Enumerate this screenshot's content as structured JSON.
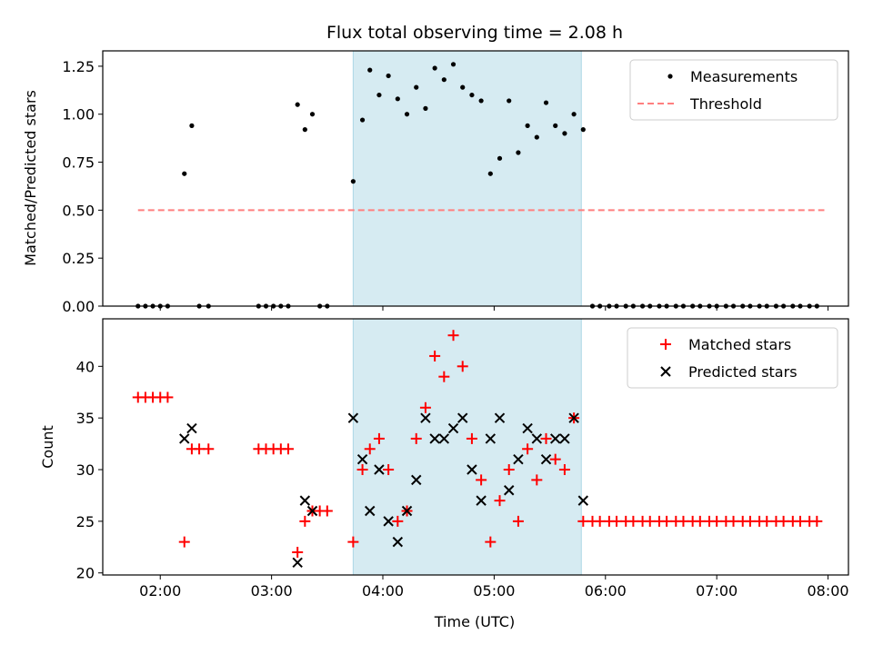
{
  "title": "Flux total observing time = 2.08 h",
  "colors": {
    "shade": "#add8e6",
    "measurements": "#000000",
    "threshold": "#ff7f7f",
    "matched": "#ff0000",
    "predicted": "#000000"
  },
  "chart_data": [
    {
      "type": "scatter",
      "ylabel": "Matched/Predicted stars",
      "xlim": [
        "01:29",
        "08:11"
      ],
      "ylim": [
        0,
        1.33
      ],
      "x_ticks": [
        "02:00",
        "03:00",
        "04:00",
        "05:00",
        "06:00",
        "07:00",
        "08:00"
      ],
      "y_ticks": [
        "0.00",
        "0.25",
        "0.50",
        "0.75",
        "1.00",
        "1.25"
      ],
      "shaded_region": {
        "x_start": "03:44",
        "x_end": "05:47"
      },
      "legend": {
        "placement": "top-right"
      },
      "series": [
        {
          "name": "Measurements",
          "marker": "dot",
          "points": [
            {
              "x": "01:48",
              "y": 0
            },
            {
              "x": "01:52",
              "y": 0
            },
            {
              "x": "01:56",
              "y": 0
            },
            {
              "x": "02:00",
              "y": 0
            },
            {
              "x": "02:04",
              "y": 0
            },
            {
              "x": "02:13",
              "y": 0.69
            },
            {
              "x": "02:17",
              "y": 0.94
            },
            {
              "x": "02:21",
              "y": 0
            },
            {
              "x": "02:26",
              "y": 0
            },
            {
              "x": "02:53",
              "y": 0
            },
            {
              "x": "02:57",
              "y": 0
            },
            {
              "x": "03:01",
              "y": 0
            },
            {
              "x": "03:05",
              "y": 0
            },
            {
              "x": "03:09",
              "y": 0
            },
            {
              "x": "03:14",
              "y": 1.05
            },
            {
              "x": "03:18",
              "y": 0.92
            },
            {
              "x": "03:22",
              "y": 1.0
            },
            {
              "x": "03:26",
              "y": 0
            },
            {
              "x": "03:30",
              "y": 0
            },
            {
              "x": "03:44",
              "y": 0.65
            },
            {
              "x": "03:49",
              "y": 0.97
            },
            {
              "x": "03:53",
              "y": 1.23
            },
            {
              "x": "03:58",
              "y": 1.1
            },
            {
              "x": "04:03",
              "y": 1.2
            },
            {
              "x": "04:08",
              "y": 1.08
            },
            {
              "x": "04:13",
              "y": 1.0
            },
            {
              "x": "04:18",
              "y": 1.14
            },
            {
              "x": "04:23",
              "y": 1.03
            },
            {
              "x": "04:28",
              "y": 1.24
            },
            {
              "x": "04:33",
              "y": 1.18
            },
            {
              "x": "04:38",
              "y": 1.26
            },
            {
              "x": "04:43",
              "y": 1.14
            },
            {
              "x": "04:48",
              "y": 1.1
            },
            {
              "x": "04:53",
              "y": 1.07
            },
            {
              "x": "04:58",
              "y": 0.69
            },
            {
              "x": "05:03",
              "y": 0.77
            },
            {
              "x": "05:08",
              "y": 1.07
            },
            {
              "x": "05:13",
              "y": 0.8
            },
            {
              "x": "05:18",
              "y": 0.94
            },
            {
              "x": "05:23",
              "y": 0.88
            },
            {
              "x": "05:28",
              "y": 1.06
            },
            {
              "x": "05:33",
              "y": 0.94
            },
            {
              "x": "05:38",
              "y": 0.9
            },
            {
              "x": "05:43",
              "y": 1.0
            },
            {
              "x": "05:48",
              "y": 0.92
            },
            {
              "x": "05:53",
              "y": 0
            },
            {
              "x": "05:57",
              "y": 0
            },
            {
              "x": "06:02",
              "y": 0
            },
            {
              "x": "06:06",
              "y": 0
            },
            {
              "x": "06:11",
              "y": 0
            },
            {
              "x": "06:15",
              "y": 0
            },
            {
              "x": "06:20",
              "y": 0
            },
            {
              "x": "06:24",
              "y": 0
            },
            {
              "x": "06:29",
              "y": 0
            },
            {
              "x": "06:33",
              "y": 0
            },
            {
              "x": "06:38",
              "y": 0
            },
            {
              "x": "06:42",
              "y": 0
            },
            {
              "x": "06:47",
              "y": 0
            },
            {
              "x": "06:51",
              "y": 0
            },
            {
              "x": "06:56",
              "y": 0
            },
            {
              "x": "07:00",
              "y": 0
            },
            {
              "x": "07:05",
              "y": 0
            },
            {
              "x": "07:09",
              "y": 0
            },
            {
              "x": "07:14",
              "y": 0
            },
            {
              "x": "07:18",
              "y": 0
            },
            {
              "x": "07:23",
              "y": 0
            },
            {
              "x": "07:27",
              "y": 0
            },
            {
              "x": "07:32",
              "y": 0
            },
            {
              "x": "07:36",
              "y": 0
            },
            {
              "x": "07:41",
              "y": 0
            },
            {
              "x": "07:45",
              "y": 0
            },
            {
              "x": "07:50",
              "y": 0
            },
            {
              "x": "07:54",
              "y": 0
            }
          ]
        },
        {
          "name": "Threshold",
          "marker": "dashed-line",
          "points": [
            {
              "x": "01:48",
              "y": 0.5
            },
            {
              "x": "07:58",
              "y": 0.5
            }
          ]
        }
      ]
    },
    {
      "type": "scatter",
      "xlabel": "Time (UTC)",
      "ylabel": "Count",
      "xlim": [
        "01:29",
        "08:11"
      ],
      "ylim": [
        19.8,
        44.6
      ],
      "x_ticks": [
        "02:00",
        "03:00",
        "04:00",
        "05:00",
        "06:00",
        "07:00",
        "08:00"
      ],
      "y_ticks": [
        "20",
        "25",
        "30",
        "35",
        "40"
      ],
      "shaded_region": {
        "x_start": "03:44",
        "x_end": "05:47"
      },
      "legend": {
        "placement": "top-right"
      },
      "series": [
        {
          "name": "Matched stars",
          "marker": "plus",
          "points": [
            {
              "x": "01:48",
              "y": 37
            },
            {
              "x": "01:52",
              "y": 37
            },
            {
              "x": "01:56",
              "y": 37
            },
            {
              "x": "02:00",
              "y": 37
            },
            {
              "x": "02:04",
              "y": 37
            },
            {
              "x": "02:13",
              "y": 23
            },
            {
              "x": "02:17",
              "y": 32
            },
            {
              "x": "02:21",
              "y": 32
            },
            {
              "x": "02:26",
              "y": 32
            },
            {
              "x": "02:53",
              "y": 32
            },
            {
              "x": "02:57",
              "y": 32
            },
            {
              "x": "03:01",
              "y": 32
            },
            {
              "x": "03:05",
              "y": 32
            },
            {
              "x": "03:09",
              "y": 32
            },
            {
              "x": "03:14",
              "y": 22
            },
            {
              "x": "03:18",
              "y": 25
            },
            {
              "x": "03:22",
              "y": 26
            },
            {
              "x": "03:26",
              "y": 26
            },
            {
              "x": "03:30",
              "y": 26
            },
            {
              "x": "03:44",
              "y": 23
            },
            {
              "x": "03:49",
              "y": 30
            },
            {
              "x": "03:53",
              "y": 32
            },
            {
              "x": "03:58",
              "y": 33
            },
            {
              "x": "04:03",
              "y": 30
            },
            {
              "x": "04:08",
              "y": 25
            },
            {
              "x": "04:13",
              "y": 26
            },
            {
              "x": "04:18",
              "y": 33
            },
            {
              "x": "04:23",
              "y": 36
            },
            {
              "x": "04:28",
              "y": 41
            },
            {
              "x": "04:33",
              "y": 39
            },
            {
              "x": "04:38",
              "y": 43
            },
            {
              "x": "04:43",
              "y": 40
            },
            {
              "x": "04:48",
              "y": 33
            },
            {
              "x": "04:53",
              "y": 29
            },
            {
              "x": "04:58",
              "y": 23
            },
            {
              "x": "05:03",
              "y": 27
            },
            {
              "x": "05:08",
              "y": 30
            },
            {
              "x": "05:13",
              "y": 25
            },
            {
              "x": "05:18",
              "y": 32
            },
            {
              "x": "05:23",
              "y": 29
            },
            {
              "x": "05:28",
              "y": 33
            },
            {
              "x": "05:33",
              "y": 31
            },
            {
              "x": "05:38",
              "y": 30
            },
            {
              "x": "05:43",
              "y": 35
            },
            {
              "x": "05:48",
              "y": 25
            },
            {
              "x": "05:53",
              "y": 25
            },
            {
              "x": "05:57",
              "y": 25
            },
            {
              "x": "06:02",
              "y": 25
            },
            {
              "x": "06:06",
              "y": 25
            },
            {
              "x": "06:11",
              "y": 25
            },
            {
              "x": "06:15",
              "y": 25
            },
            {
              "x": "06:20",
              "y": 25
            },
            {
              "x": "06:24",
              "y": 25
            },
            {
              "x": "06:29",
              "y": 25
            },
            {
              "x": "06:33",
              "y": 25
            },
            {
              "x": "06:38",
              "y": 25
            },
            {
              "x": "06:42",
              "y": 25
            },
            {
              "x": "06:47",
              "y": 25
            },
            {
              "x": "06:51",
              "y": 25
            },
            {
              "x": "06:56",
              "y": 25
            },
            {
              "x": "07:00",
              "y": 25
            },
            {
              "x": "07:05",
              "y": 25
            },
            {
              "x": "07:09",
              "y": 25
            },
            {
              "x": "07:14",
              "y": 25
            },
            {
              "x": "07:18",
              "y": 25
            },
            {
              "x": "07:23",
              "y": 25
            },
            {
              "x": "07:27",
              "y": 25
            },
            {
              "x": "07:32",
              "y": 25
            },
            {
              "x": "07:36",
              "y": 25
            },
            {
              "x": "07:41",
              "y": 25
            },
            {
              "x": "07:45",
              "y": 25
            },
            {
              "x": "07:50",
              "y": 25
            },
            {
              "x": "07:54",
              "y": 25
            }
          ]
        },
        {
          "name": "Predicted stars",
          "marker": "x",
          "points": [
            {
              "x": "02:13",
              "y": 33
            },
            {
              "x": "02:17",
              "y": 34
            },
            {
              "x": "03:14",
              "y": 21
            },
            {
              "x": "03:18",
              "y": 27
            },
            {
              "x": "03:22",
              "y": 26
            },
            {
              "x": "03:44",
              "y": 35
            },
            {
              "x": "03:49",
              "y": 31
            },
            {
              "x": "03:53",
              "y": 26
            },
            {
              "x": "03:58",
              "y": 30
            },
            {
              "x": "04:03",
              "y": 25
            },
            {
              "x": "04:08",
              "y": 23
            },
            {
              "x": "04:13",
              "y": 26
            },
            {
              "x": "04:18",
              "y": 29
            },
            {
              "x": "04:23",
              "y": 35
            },
            {
              "x": "04:28",
              "y": 33
            },
            {
              "x": "04:33",
              "y": 33
            },
            {
              "x": "04:38",
              "y": 34
            },
            {
              "x": "04:43",
              "y": 35
            },
            {
              "x": "04:48",
              "y": 30
            },
            {
              "x": "04:53",
              "y": 27
            },
            {
              "x": "04:58",
              "y": 33
            },
            {
              "x": "05:03",
              "y": 35
            },
            {
              "x": "05:08",
              "y": 28
            },
            {
              "x": "05:13",
              "y": 31
            },
            {
              "x": "05:18",
              "y": 34
            },
            {
              "x": "05:23",
              "y": 33
            },
            {
              "x": "05:28",
              "y": 31
            },
            {
              "x": "05:33",
              "y": 33
            },
            {
              "x": "05:38",
              "y": 33
            },
            {
              "x": "05:43",
              "y": 35
            },
            {
              "x": "05:48",
              "y": 27
            }
          ]
        }
      ]
    }
  ]
}
